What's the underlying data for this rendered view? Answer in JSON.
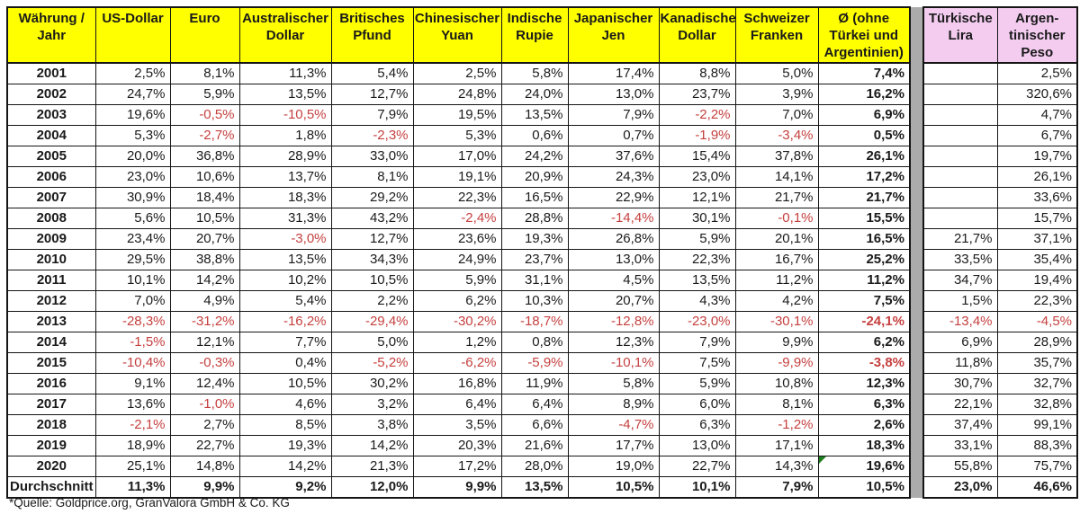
{
  "colors": {
    "yellow": "#FFFF00",
    "pink": "#F3CCF0",
    "gap": "#ABABAB",
    "red": "#C5403F",
    "green": "#1E7E1E",
    "border": "#151515",
    "text": "#1A1A1A"
  },
  "chart_data": {
    "type": "table",
    "corner_header": "Währung /\nJahr",
    "columns": [
      {
        "label": "US-Dollar",
        "group": "main"
      },
      {
        "label": "Euro",
        "group": "main"
      },
      {
        "label": "Australischer\nDollar",
        "group": "main"
      },
      {
        "label": "Britisches\nPfund",
        "group": "main"
      },
      {
        "label": "Chinesischer\nYuan",
        "group": "main"
      },
      {
        "label": "Indische\nRupie",
        "group": "main"
      },
      {
        "label": "Japanischer\nJen",
        "group": "main"
      },
      {
        "label": "Kanadischer\nDollar",
        "group": "main"
      },
      {
        "label": "Schweizer\nFranken",
        "group": "main"
      },
      {
        "label": "Ø (ohne\nTürkei und\nArgentinien)",
        "group": "average"
      },
      {
        "label": "Türkische\nLira",
        "group": "extra"
      },
      {
        "label": "Argen-\ntinischer\nPeso",
        "group": "extra"
      }
    ],
    "rows": [
      {
        "year": "2001",
        "values": [
          "2,5%",
          "8,1%",
          "11,3%",
          "5,4%",
          "2,5%",
          "5,8%",
          "17,4%",
          "8,8%",
          "5,0%",
          "7,4%",
          "",
          "2,5%"
        ]
      },
      {
        "year": "2002",
        "values": [
          "24,7%",
          "5,9%",
          "13,5%",
          "12,7%",
          "24,8%",
          "24,0%",
          "13,0%",
          "23,7%",
          "3,9%",
          "16,2%",
          "",
          "320,6%"
        ]
      },
      {
        "year": "2003",
        "values": [
          "19,6%",
          "-0,5%",
          "-10,5%",
          "7,9%",
          "19,5%",
          "13,5%",
          "7,9%",
          "-2,2%",
          "7,0%",
          "6,9%",
          "",
          "4,7%"
        ]
      },
      {
        "year": "2004",
        "values": [
          "5,3%",
          "-2,7%",
          "1,8%",
          "-2,3%",
          "5,3%",
          "0,6%",
          "0,7%",
          "-1,9%",
          "-3,4%",
          "0,5%",
          "",
          "6,7%"
        ]
      },
      {
        "year": "2005",
        "values": [
          "20,0%",
          "36,8%",
          "28,9%",
          "33,0%",
          "17,0%",
          "24,2%",
          "37,6%",
          "15,4%",
          "37,8%",
          "26,1%",
          "",
          "19,7%"
        ]
      },
      {
        "year": "2006",
        "values": [
          "23,0%",
          "10,6%",
          "13,7%",
          "8,1%",
          "19,1%",
          "20,9%",
          "24,3%",
          "23,0%",
          "14,1%",
          "17,2%",
          "",
          "26,1%"
        ]
      },
      {
        "year": "2007",
        "values": [
          "30,9%",
          "18,4%",
          "18,3%",
          "29,2%",
          "22,3%",
          "16,5%",
          "22,9%",
          "12,1%",
          "21,7%",
          "21,7%",
          "",
          "33,6%"
        ]
      },
      {
        "year": "2008",
        "values": [
          "5,6%",
          "10,5%",
          "31,3%",
          "43,2%",
          "-2,4%",
          "28,8%",
          "-14,4%",
          "30,1%",
          "-0,1%",
          "15,5%",
          "",
          "15,7%"
        ]
      },
      {
        "year": "2009",
        "values": [
          "23,4%",
          "20,7%",
          "-3,0%",
          "12,7%",
          "23,6%",
          "19,3%",
          "26,8%",
          "5,9%",
          "20,1%",
          "16,5%",
          "21,7%",
          "37,1%"
        ]
      },
      {
        "year": "2010",
        "values": [
          "29,5%",
          "38,8%",
          "13,5%",
          "34,3%",
          "24,9%",
          "23,7%",
          "13,0%",
          "22,3%",
          "16,7%",
          "25,2%",
          "33,5%",
          "35,4%"
        ]
      },
      {
        "year": "2011",
        "values": [
          "10,1%",
          "14,2%",
          "10,2%",
          "10,5%",
          "5,9%",
          "31,1%",
          "4,5%",
          "13,5%",
          "11,2%",
          "11,2%",
          "34,7%",
          "19,4%"
        ]
      },
      {
        "year": "2012",
        "values": [
          "7,0%",
          "4,9%",
          "5,4%",
          "2,2%",
          "6,2%",
          "10,3%",
          "20,7%",
          "4,3%",
          "4,2%",
          "7,5%",
          "1,5%",
          "22,3%"
        ]
      },
      {
        "year": "2013",
        "values": [
          "-28,3%",
          "-31,2%",
          "-16,2%",
          "-29,4%",
          "-30,2%",
          "-18,7%",
          "-12,8%",
          "-23,0%",
          "-30,1%",
          "-24,1%",
          "-13,4%",
          "-4,5%"
        ]
      },
      {
        "year": "2014",
        "values": [
          "-1,5%",
          "12,1%",
          "7,7%",
          "5,0%",
          "1,2%",
          "0,8%",
          "12,3%",
          "7,9%",
          "9,9%",
          "6,2%",
          "6,9%",
          "28,9%"
        ]
      },
      {
        "year": "2015",
        "values": [
          "-10,4%",
          "-0,3%",
          "0,4%",
          "-5,2%",
          "-6,2%",
          "-5,9%",
          "-10,1%",
          "7,5%",
          "-9,9%",
          "-3,8%",
          "11,8%",
          "35,7%"
        ]
      },
      {
        "year": "2016",
        "values": [
          "9,1%",
          "12,4%",
          "10,5%",
          "30,2%",
          "16,8%",
          "11,9%",
          "5,8%",
          "5,9%",
          "10,8%",
          "12,3%",
          "30,7%",
          "32,7%"
        ]
      },
      {
        "year": "2017",
        "values": [
          "13,6%",
          "-1,0%",
          "4,6%",
          "3,2%",
          "6,4%",
          "6,4%",
          "8,9%",
          "6,0%",
          "8,1%",
          "6,3%",
          "22,1%",
          "32,8%"
        ]
      },
      {
        "year": "2018",
        "values": [
          "-2,1%",
          "2,7%",
          "8,5%",
          "3,8%",
          "3,5%",
          "6,6%",
          "-4,7%",
          "6,3%",
          "-1,2%",
          "2,6%",
          "37,4%",
          "99,1%"
        ]
      },
      {
        "year": "2019",
        "values": [
          "18,9%",
          "22,7%",
          "19,3%",
          "14,2%",
          "20,3%",
          "21,6%",
          "17,7%",
          "13,0%",
          "17,1%",
          "18,3%",
          "33,1%",
          "88,3%"
        ]
      },
      {
        "year": "2020",
        "values": [
          "25,1%",
          "14,8%",
          "14,2%",
          "21,3%",
          "17,2%",
          "28,0%",
          "19,0%",
          "22,7%",
          "14,3%",
          "19,6%",
          "55,8%",
          "75,7%"
        ]
      }
    ],
    "average_row": {
      "label": "Durchschnitt",
      "values": [
        "11,3%",
        "9,9%",
        "9,2%",
        "12,0%",
        "9,9%",
        "13,5%",
        "10,5%",
        "10,1%",
        "7,9%",
        "10,5%",
        "23,0%",
        "46,6%"
      ]
    },
    "note_marker": {
      "year": "2020",
      "column_index": 9
    },
    "source_note": "*Quelle: Goldprice.org, GranValora GmbH & Co. KG"
  }
}
